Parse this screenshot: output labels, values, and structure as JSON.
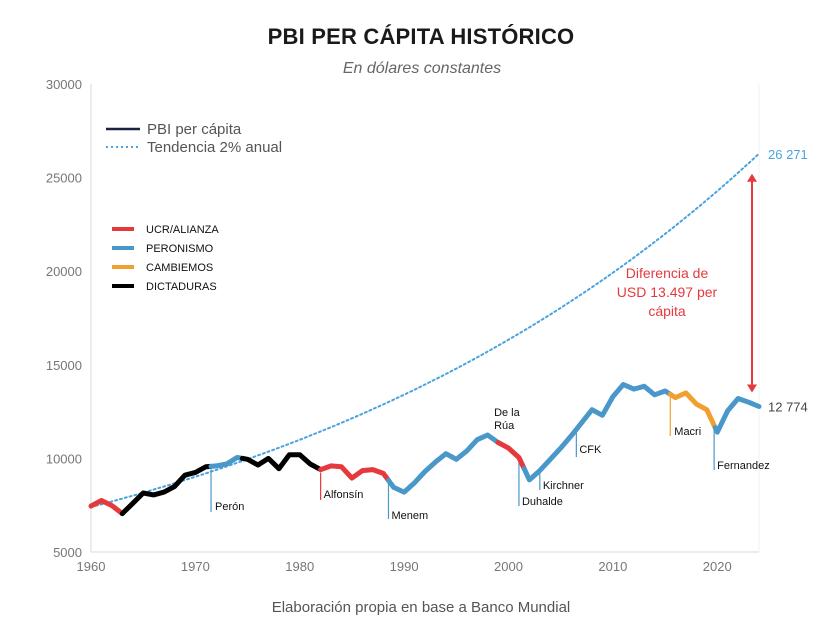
{
  "chart_data": {
    "type": "line",
    "title": "PBI PER CÁPITA HISTÓRICO",
    "subtitle": "En dólares constantes",
    "caption": "Elaboración propia en base a Banco Mundial",
    "xlim": [
      1960,
      2024
    ],
    "ylim": [
      5000,
      30000
    ],
    "x_ticks": [
      "1960",
      "1970",
      "1980",
      "1990",
      "2000",
      "2010",
      "2020"
    ],
    "y_ticks": [
      "5000",
      "10000",
      "15000",
      "20000",
      "25000",
      "30000"
    ],
    "grid": false,
    "legend": [
      {
        "label": "PBI per cápita",
        "style": "solid",
        "color": "#1c2340"
      },
      {
        "label": "Tendencia 2% anual",
        "style": "dotted",
        "color": "#4aa3df"
      }
    ],
    "party_legend": [
      {
        "label": "UCR/ALIANZA",
        "color": "#e5393e"
      },
      {
        "label": "PERONISMO",
        "color": "#4a97c9"
      },
      {
        "label": "CAMBIEMOS",
        "color": "#f0a030"
      },
      {
        "label": "DICTADURAS",
        "color": "#000000"
      }
    ],
    "series": [
      {
        "name": "PBI per cápita",
        "x": [
          1960,
          1961,
          1962,
          1963,
          1964,
          1965,
          1966,
          1967,
          1968,
          1969,
          1970,
          1971,
          1972,
          1973,
          1974,
          1975,
          1976,
          1977,
          1978,
          1979,
          1980,
          1981,
          1982,
          1983,
          1984,
          1985,
          1986,
          1987,
          1988,
          1989,
          1990,
          1991,
          1992,
          1993,
          1994,
          1995,
          1996,
          1997,
          1998,
          1999,
          2000,
          2001,
          2002,
          2003,
          2004,
          2005,
          2006,
          2007,
          2008,
          2009,
          2010,
          2011,
          2012,
          2013,
          2014,
          2015,
          2016,
          2017,
          2018,
          2019,
          2020,
          2021,
          2022,
          2023,
          2024
        ],
        "y": [
          7450,
          7750,
          7480,
          7050,
          7600,
          8150,
          8050,
          8200,
          8500,
          9100,
          9250,
          9550,
          9600,
          9700,
          10050,
          9950,
          9650,
          10000,
          9450,
          10200,
          10200,
          9700,
          9400,
          9600,
          9550,
          8950,
          9350,
          9400,
          9200,
          8450,
          8200,
          8700,
          9300,
          9800,
          10250,
          9950,
          10400,
          11000,
          11250,
          10850,
          10550,
          10050,
          8850,
          9350,
          9950,
          10550,
          11200,
          11900,
          12600,
          12300,
          13300,
          13950,
          13700,
          13850,
          13400,
          13600,
          13250,
          13500,
          12900,
          12600,
          11400,
          12550,
          13200,
          13000,
          12774
        ],
        "segments": [
          {
            "party": "UCR/ALIANZA",
            "color": "#e5393e",
            "from": 1960,
            "to": 1963
          },
          {
            "party": "DICTADURAS",
            "color": "#000000",
            "from": 1963,
            "to": 1971.5
          },
          {
            "party": "PERONISMO",
            "color": "#4a97c9",
            "from": 1971.5,
            "to": 1974.5
          },
          {
            "party": "DICTADURAS",
            "color": "#000000",
            "from": 1974.5,
            "to": 1982
          },
          {
            "party": "UCR/ALIANZA",
            "color": "#e5393e",
            "from": 1982,
            "to": 1988.5
          },
          {
            "party": "PERONISMO",
            "color": "#4a97c9",
            "from": 1988.5,
            "to": 1999
          },
          {
            "party": "UCR/ALIANZA",
            "color": "#e5393e",
            "from": 1999,
            "to": 2001.5
          },
          {
            "party": "PERONISMO",
            "color": "#4a97c9",
            "from": 2001.5,
            "to": 2015.5
          },
          {
            "party": "CAMBIEMOS",
            "color": "#f0a030",
            "from": 2015.5,
            "to": 2019.8
          },
          {
            "party": "PERONISMO",
            "color": "#4a97c9",
            "from": 2019.8,
            "to": 2024
          }
        ]
      },
      {
        "name": "Tendencia 2% anual",
        "start_year": 1960,
        "start_value": 7400,
        "annual_growth": 0.02,
        "end_value": 26271
      }
    ],
    "annotations": [
      {
        "label": "Perón",
        "year": 1971.5,
        "color": "#4a97c9"
      },
      {
        "label": "Alfonsín",
        "year": 1982,
        "color": "#e5393e"
      },
      {
        "label": "Menem",
        "year": 1988.5,
        "color": "#4a97c9"
      },
      {
        "label": "De la Rúa",
        "year": 1999,
        "color": "#e5393e"
      },
      {
        "label": "Duhalde",
        "year": 2001,
        "color": "#4a97c9"
      },
      {
        "label": "Kirchner",
        "year": 2003,
        "color": "#4a97c9"
      },
      {
        "label": "CFK",
        "year": 2006.5,
        "color": "#4a97c9"
      },
      {
        "label": "Macri",
        "year": 2015.5,
        "color": "#f0a030"
      },
      {
        "label": "Fernandez",
        "year": 2019.7,
        "color": "#4a97c9"
      }
    ],
    "difference": {
      "text": [
        "Diferencia de",
        "USD 13.497 per",
        "cápita"
      ],
      "color": "#e5393e",
      "year": 2024,
      "from": 12774,
      "to": 26271
    },
    "end_labels": [
      {
        "text": "26 271",
        "color": "#4aa3df",
        "value": 26271
      },
      {
        "text": "12 774",
        "color": "#444444",
        "value": 12774
      }
    ]
  }
}
